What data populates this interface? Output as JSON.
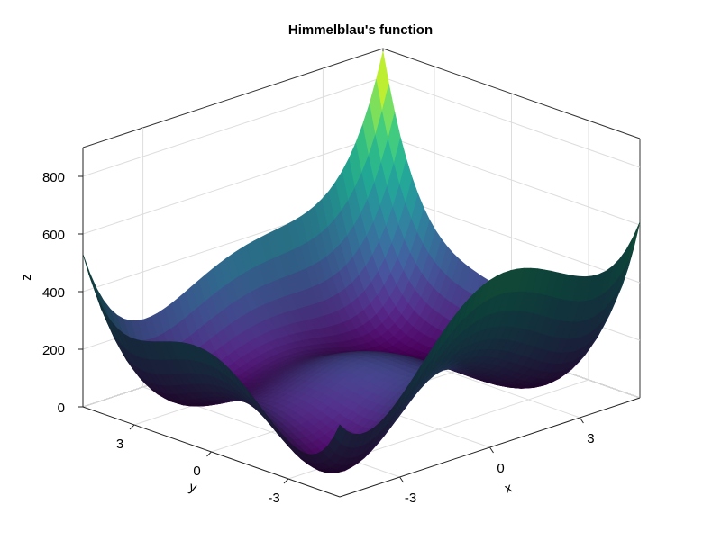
{
  "chart_data": {
    "type": "surface",
    "title": "Himmelblau's function",
    "function": "(x^2 + y - 11)^2 + (x + y^2 - 7)^2",
    "colormap": "viridis",
    "xlabel": "x",
    "ylabel": "y",
    "zlabel": "z",
    "xlim": [
      -5,
      5
    ],
    "ylim": [
      -5,
      5
    ],
    "zlim": [
      0,
      900
    ],
    "xticks": [
      {
        "value": -3,
        "label": "-3"
      },
      {
        "value": 0,
        "label": "0"
      },
      {
        "value": 3,
        "label": "3"
      }
    ],
    "yticks": [
      {
        "value": -3,
        "label": "-3"
      },
      {
        "value": 0,
        "label": "0"
      },
      {
        "value": 3,
        "label": "3"
      }
    ],
    "zticks": [
      {
        "value": 0,
        "label": "0"
      },
      {
        "value": 200,
        "label": "200"
      },
      {
        "value": 400,
        "label": "400"
      },
      {
        "value": 600,
        "label": "600"
      },
      {
        "value": 800,
        "label": "800"
      }
    ],
    "grid": true
  }
}
